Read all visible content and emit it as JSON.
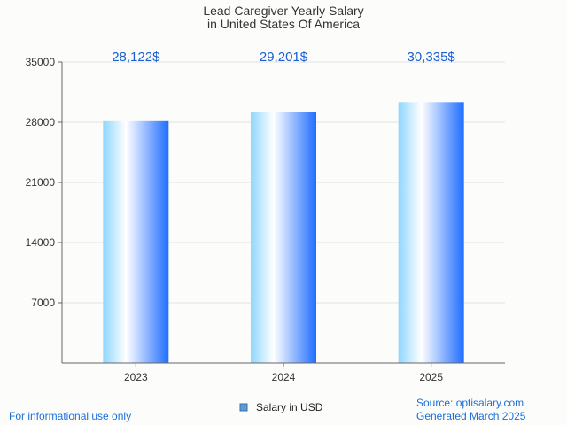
{
  "chart_data": {
    "type": "bar",
    "title": [
      "Lead Caregiver Yearly Salary",
      "in United States Of America"
    ],
    "categories": [
      "2023",
      "2024",
      "2025"
    ],
    "series": [
      {
        "name": "Salary in USD",
        "values": [
          28122,
          29201,
          30335
        ]
      }
    ],
    "data_labels": [
      "28,122$",
      "29,201$",
      "30,335$"
    ],
    "y_ticks": [
      "7000",
      "14000",
      "21000",
      "28000",
      "35000"
    ],
    "ylim": [
      0,
      35000
    ],
    "grid": true,
    "legend_position": "bottom",
    "colors": {
      "bar_light": "#ffffff",
      "bar_mid": "#7fd3ff",
      "bar_dark": "#1f6dff",
      "label": "#1a5fd6"
    }
  },
  "footer": {
    "disclaimer": "For informational use only",
    "source": "Source: optisalary.com",
    "generated": "Generated March 2025"
  }
}
